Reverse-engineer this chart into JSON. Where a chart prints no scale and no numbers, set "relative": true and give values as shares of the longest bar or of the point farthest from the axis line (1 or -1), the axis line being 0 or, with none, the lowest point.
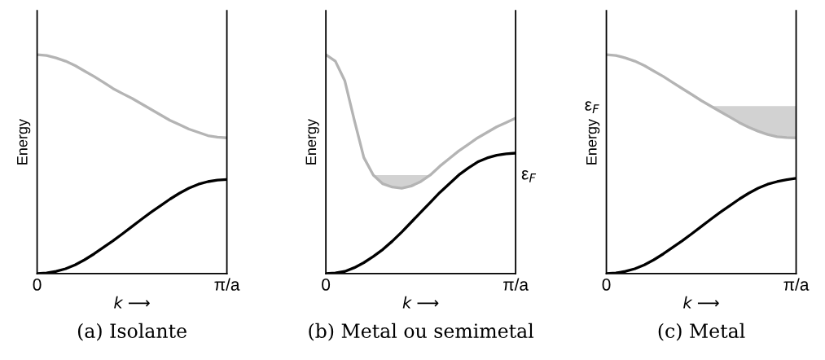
{
  "chart_data": [
    {
      "type": "line",
      "title": "(a) Isolante",
      "xlabel": "k ⟶",
      "ylabel": "Energy",
      "relative": true,
      "categories": [
        "0",
        null,
        null,
        null,
        null,
        null,
        null,
        null,
        null,
        null,
        null,
        null,
        null,
        null,
        null,
        null,
        null,
        null,
        null,
        null,
        "π/a"
      ],
      "grid": false,
      "legend": false,
      "series": [
        {
          "color": "#b4b4b4",
          "values": [
            1.0,
            0.996,
            0.985,
            0.97,
            0.95,
            0.925,
            0.9,
            0.873,
            0.845,
            0.822,
            0.8,
            0.775,
            0.75,
            0.725,
            0.7,
            0.68,
            0.66,
            0.645,
            0.63,
            0.623,
            0.62
          ]
        },
        {
          "color": "#000000",
          "values": [
            0,
            0.003,
            0.01,
            0.022,
            0.04,
            0.063,
            0.09,
            0.12,
            0.15,
            0.182,
            0.215,
            0.248,
            0.28,
            0.31,
            0.34,
            0.367,
            0.39,
            0.408,
            0.42,
            0.427,
            0.43
          ]
        }
      ]
    },
    {
      "type": "line",
      "title": "(b) Metal ou semimetal",
      "xlabel": "k ⟶",
      "ylabel": "Energy",
      "relative": true,
      "categories": [
        "0",
        null,
        null,
        null,
        null,
        null,
        null,
        null,
        null,
        null,
        null,
        null,
        null,
        null,
        null,
        null,
        null,
        null,
        null,
        null,
        "π/a"
      ],
      "grid": false,
      "legend": false,
      "annotations": [
        "ε$_{F}$"
      ],
      "series": [
        {
          "color": "#b4b4b4",
          "values": [
            1.0,
            0.97,
            0.88,
            0.7,
            0.53,
            0.45,
            0.41,
            0.395,
            0.39,
            0.4,
            0.42,
            0.45,
            0.49,
            0.525,
            0.56,
            0.59,
            0.62,
            0.645,
            0.67,
            0.69,
            0.71
          ],
          "upper": [
            null,
            null,
            null,
            null,
            null,
            0.45,
            0.45,
            0.45,
            0.45,
            0.45,
            0.45,
            0.45,
            null,
            null,
            null,
            null,
            null,
            null,
            null,
            null,
            null
          ],
          "lower": [
            null,
            null,
            null,
            null,
            null,
            0.45,
            0.41,
            0.395,
            0.39,
            0.4,
            0.42,
            0.45,
            null,
            null,
            null,
            null,
            null,
            null,
            null,
            null,
            null
          ]
        },
        {
          "color": "#000000",
          "values": [
            0,
            0.003,
            0.01,
            0.027,
            0.05,
            0.078,
            0.11,
            0.148,
            0.19,
            0.235,
            0.28,
            0.325,
            0.37,
            0.41,
            0.45,
            0.482,
            0.51,
            0.528,
            0.54,
            0.547,
            0.55
          ]
        }
      ]
    },
    {
      "type": "line",
      "title": "(c) Metal",
      "xlabel": "k ⟶",
      "ylabel": "Energy",
      "relative": true,
      "categories": [
        "0",
        null,
        null,
        null,
        null,
        null,
        null,
        null,
        null,
        null,
        null,
        null,
        null,
        null,
        null,
        null,
        null,
        null,
        null,
        null,
        "π/a"
      ],
      "grid": false,
      "legend": false,
      "annotations": [
        "ε$_{F}$"
      ],
      "series": [
        {
          "color": "#b4b4b4",
          "values": [
            1.0,
            0.996,
            0.985,
            0.97,
            0.95,
            0.925,
            0.9,
            0.872,
            0.845,
            0.818,
            0.79,
            0.765,
            0.74,
            0.715,
            0.69,
            0.668,
            0.65,
            0.635,
            0.625,
            0.621,
            0.62
          ],
          "upper": [
            null,
            null,
            null,
            null,
            null,
            null,
            null,
            null,
            null,
            null,
            null,
            0.765,
            0.765,
            0.765,
            0.765,
            0.765,
            0.765,
            0.765,
            0.765,
            0.765,
            0.765
          ],
          "lower": [
            null,
            null,
            null,
            null,
            null,
            null,
            null,
            null,
            null,
            null,
            null,
            0.765,
            0.74,
            0.715,
            0.69,
            0.668,
            0.65,
            0.635,
            0.625,
            0.621,
            0.62
          ]
        },
        {
          "color": "#000000",
          "values": [
            0,
            0.003,
            0.01,
            0.022,
            0.04,
            0.063,
            0.09,
            0.12,
            0.15,
            0.182,
            0.215,
            0.248,
            0.28,
            0.31,
            0.34,
            0.367,
            0.39,
            0.408,
            0.42,
            0.429,
            0.435
          ]
        }
      ]
    }
  ]
}
